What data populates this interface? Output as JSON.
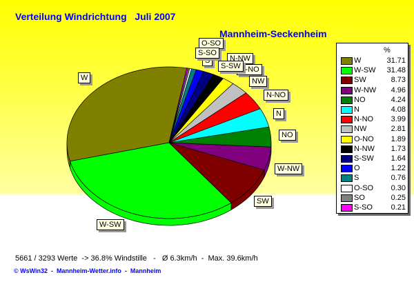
{
  "chart_data": {
    "type": "pie",
    "title": "Verteilung Windrichtung   Juli 2007",
    "subtitle": "Mannheim-Seckenheim",
    "legend_header": "%",
    "legend_position": "right",
    "categories": [
      "W",
      "W-SW",
      "SW",
      "W-NW",
      "NO",
      "N",
      "N-NO",
      "NW",
      "O-NO",
      "N-NW",
      "S-SW",
      "O",
      "S",
      "O-SO",
      "SO",
      "S-SO"
    ],
    "values": [
      31.71,
      31.48,
      8.73,
      4.96,
      4.24,
      4.08,
      3.99,
      2.81,
      1.89,
      1.73,
      1.64,
      1.22,
      0.76,
      0.3,
      0.25,
      0.21
    ],
    "value_labels": [
      "31.71",
      "31.48",
      "8.73",
      "4.96",
      "4.24",
      "4.08",
      "3.99",
      "2.81",
      "1.89",
      "1.73",
      "1.64",
      "1.22",
      "0.76",
      "0.30",
      "0.25",
      "0.21"
    ],
    "colors": [
      "#808000",
      "#00ff00",
      "#800000",
      "#800080",
      "#008000",
      "#00ffff",
      "#ff0000",
      "#c0c0c0",
      "#ffff00",
      "#000000",
      "#000080",
      "#0000ff",
      "#008080",
      "#ffffff",
      "#808080",
      "#ff00ff"
    ]
  },
  "footer": {
    "stats": "5661 / 3293 Werte  -> 36.8% Windstille   -   Ø 6.3km/h  -  Max. 39.6km/h",
    "credits": "© WsWin32  -  Mannheim-Wetter.info  -  Mannheim"
  }
}
